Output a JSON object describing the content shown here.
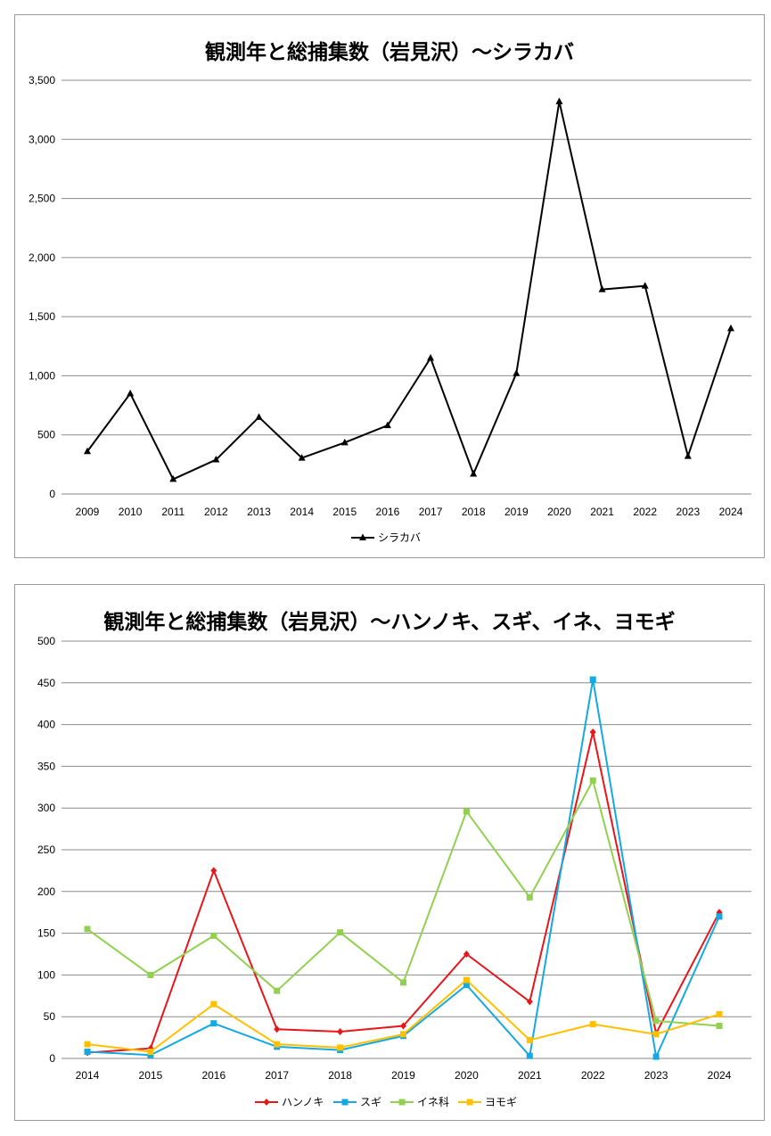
{
  "chart_data": [
    {
      "type": "line",
      "title": "観測年と総捕集数（岩見沢）～シラカバ",
      "categories": [
        "2009",
        "2010",
        "2011",
        "2012",
        "2013",
        "2014",
        "2015",
        "2016",
        "2017",
        "2018",
        "2019",
        "2020",
        "2021",
        "2022",
        "2023",
        "2024"
      ],
      "ylim": [
        0,
        3500
      ],
      "yticks": [
        "0",
        "500",
        "1,000",
        "1,500",
        "2,000",
        "2,500",
        "3,000",
        "3,500"
      ],
      "grid": true,
      "legend_position": "bottom",
      "series": [
        {
          "name": "シラカバ",
          "color": "#000000",
          "marker": "triangle",
          "values": [
            360,
            850,
            125,
            290,
            650,
            305,
            435,
            580,
            1150,
            170,
            1020,
            3320,
            1730,
            1760,
            320,
            1400
          ]
        }
      ]
    },
    {
      "type": "line",
      "title": "観測年と総捕集数（岩見沢）～ハンノキ、スギ、イネ、ヨモギ",
      "categories": [
        "2014",
        "2015",
        "2016",
        "2017",
        "2018",
        "2019",
        "2020",
        "2021",
        "2022",
        "2023",
        "2024"
      ],
      "ylim": [
        0,
        500
      ],
      "yticks": [
        "0",
        "50",
        "100",
        "150",
        "200",
        "250",
        "300",
        "350",
        "400",
        "450",
        "500"
      ],
      "grid": true,
      "legend_position": "bottom",
      "series": [
        {
          "name": "ハンノキ",
          "color": "#e8161b",
          "marker": "diamond",
          "values": [
            7,
            12,
            225,
            35,
            32,
            39,
            125,
            68,
            391,
            30,
            175
          ]
        },
        {
          "name": "スギ",
          "color": "#14a9e0",
          "marker": "square",
          "values": [
            8,
            4,
            42,
            14,
            10,
            27,
            88,
            3,
            454,
            2,
            170
          ]
        },
        {
          "name": "イネ科",
          "color": "#92d050",
          "marker": "square",
          "values": [
            155,
            100,
            147,
            81,
            151,
            91,
            296,
            193,
            333,
            45,
            39
          ]
        },
        {
          "name": "ヨモギ",
          "color": "#ffc000",
          "marker": "square",
          "values": [
            17,
            8,
            65,
            17,
            13,
            29,
            94,
            22,
            41,
            29,
            53
          ]
        }
      ]
    }
  ]
}
